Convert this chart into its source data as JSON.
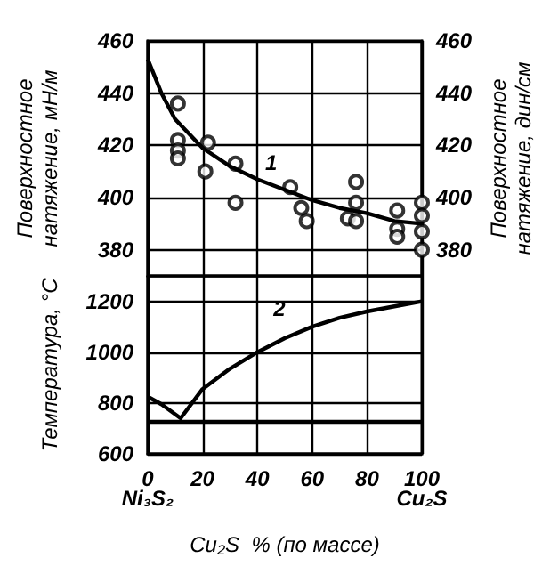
{
  "chart_data": [
    {
      "type": "scatter",
      "ylabel": "Поверхностное\nнатяжение, мН/м",
      "y2label": "Поверхностное\nнатяжение, дин/см",
      "xlim": [
        0,
        100
      ],
      "xticks": [
        0,
        20,
        40,
        60,
        80,
        100
      ],
      "ylim": [
        370,
        460
      ],
      "yticks": [
        380,
        400,
        420,
        440,
        460
      ],
      "y2lim": [
        370,
        460
      ],
      "y2ticks": [
        380,
        400,
        420,
        440,
        460
      ],
      "tick_labels": "y",
      "grid": true,
      "annotations": [
        "1"
      ],
      "series": [
        {
          "color": "#000000",
          "marker": "circle",
          "x": [
            11,
            11,
            11,
            11,
            22,
            21,
            32,
            32,
            52,
            56,
            58,
            73,
            76,
            76,
            76,
            91,
            91,
            91,
            100,
            100,
            100,
            100
          ],
          "values": [
            436,
            422,
            418,
            415,
            421,
            410,
            413,
            398,
            404,
            396,
            391,
            392,
            406,
            398,
            391,
            395,
            388,
            385,
            398,
            393,
            387,
            380
          ]
        },
        {
          "type": "line",
          "color": "#000000",
          "marker": "none",
          "x": [
            0,
            5,
            10,
            20,
            30,
            40,
            50,
            60,
            70,
            80,
            90,
            100
          ],
          "values": [
            453,
            440,
            430,
            419,
            412,
            407,
            403,
            399,
            396,
            394,
            391,
            390
          ]
        }
      ]
    },
    {
      "type": "line",
      "ylabel": "Температура, °C",
      "xlabel": "Cu₂S  % (по массе)",
      "xlim": [
        0,
        100
      ],
      "xticks": [
        0,
        20,
        40,
        60,
        80,
        100
      ],
      "ylim": [
        600,
        1300
      ],
      "yticks": [
        600,
        800,
        1000,
        1200
      ],
      "grid": true,
      "annotations": [
        "2",
        "Ni₃S₂",
        "Cu₂S"
      ],
      "ref_lines": [
        {
          "axis": "y",
          "value": 725,
          "color": "#000000"
        }
      ],
      "series": [
        {
          "color": "#000000",
          "marker": "none",
          "x": [
            0,
            5,
            12,
            20,
            30,
            40,
            50,
            60,
            70,
            80,
            90,
            100
          ],
          "values": [
            825,
            795,
            740,
            855,
            935,
            1000,
            1055,
            1100,
            1135,
            1160,
            1180,
            1200
          ]
        }
      ]
    }
  ]
}
